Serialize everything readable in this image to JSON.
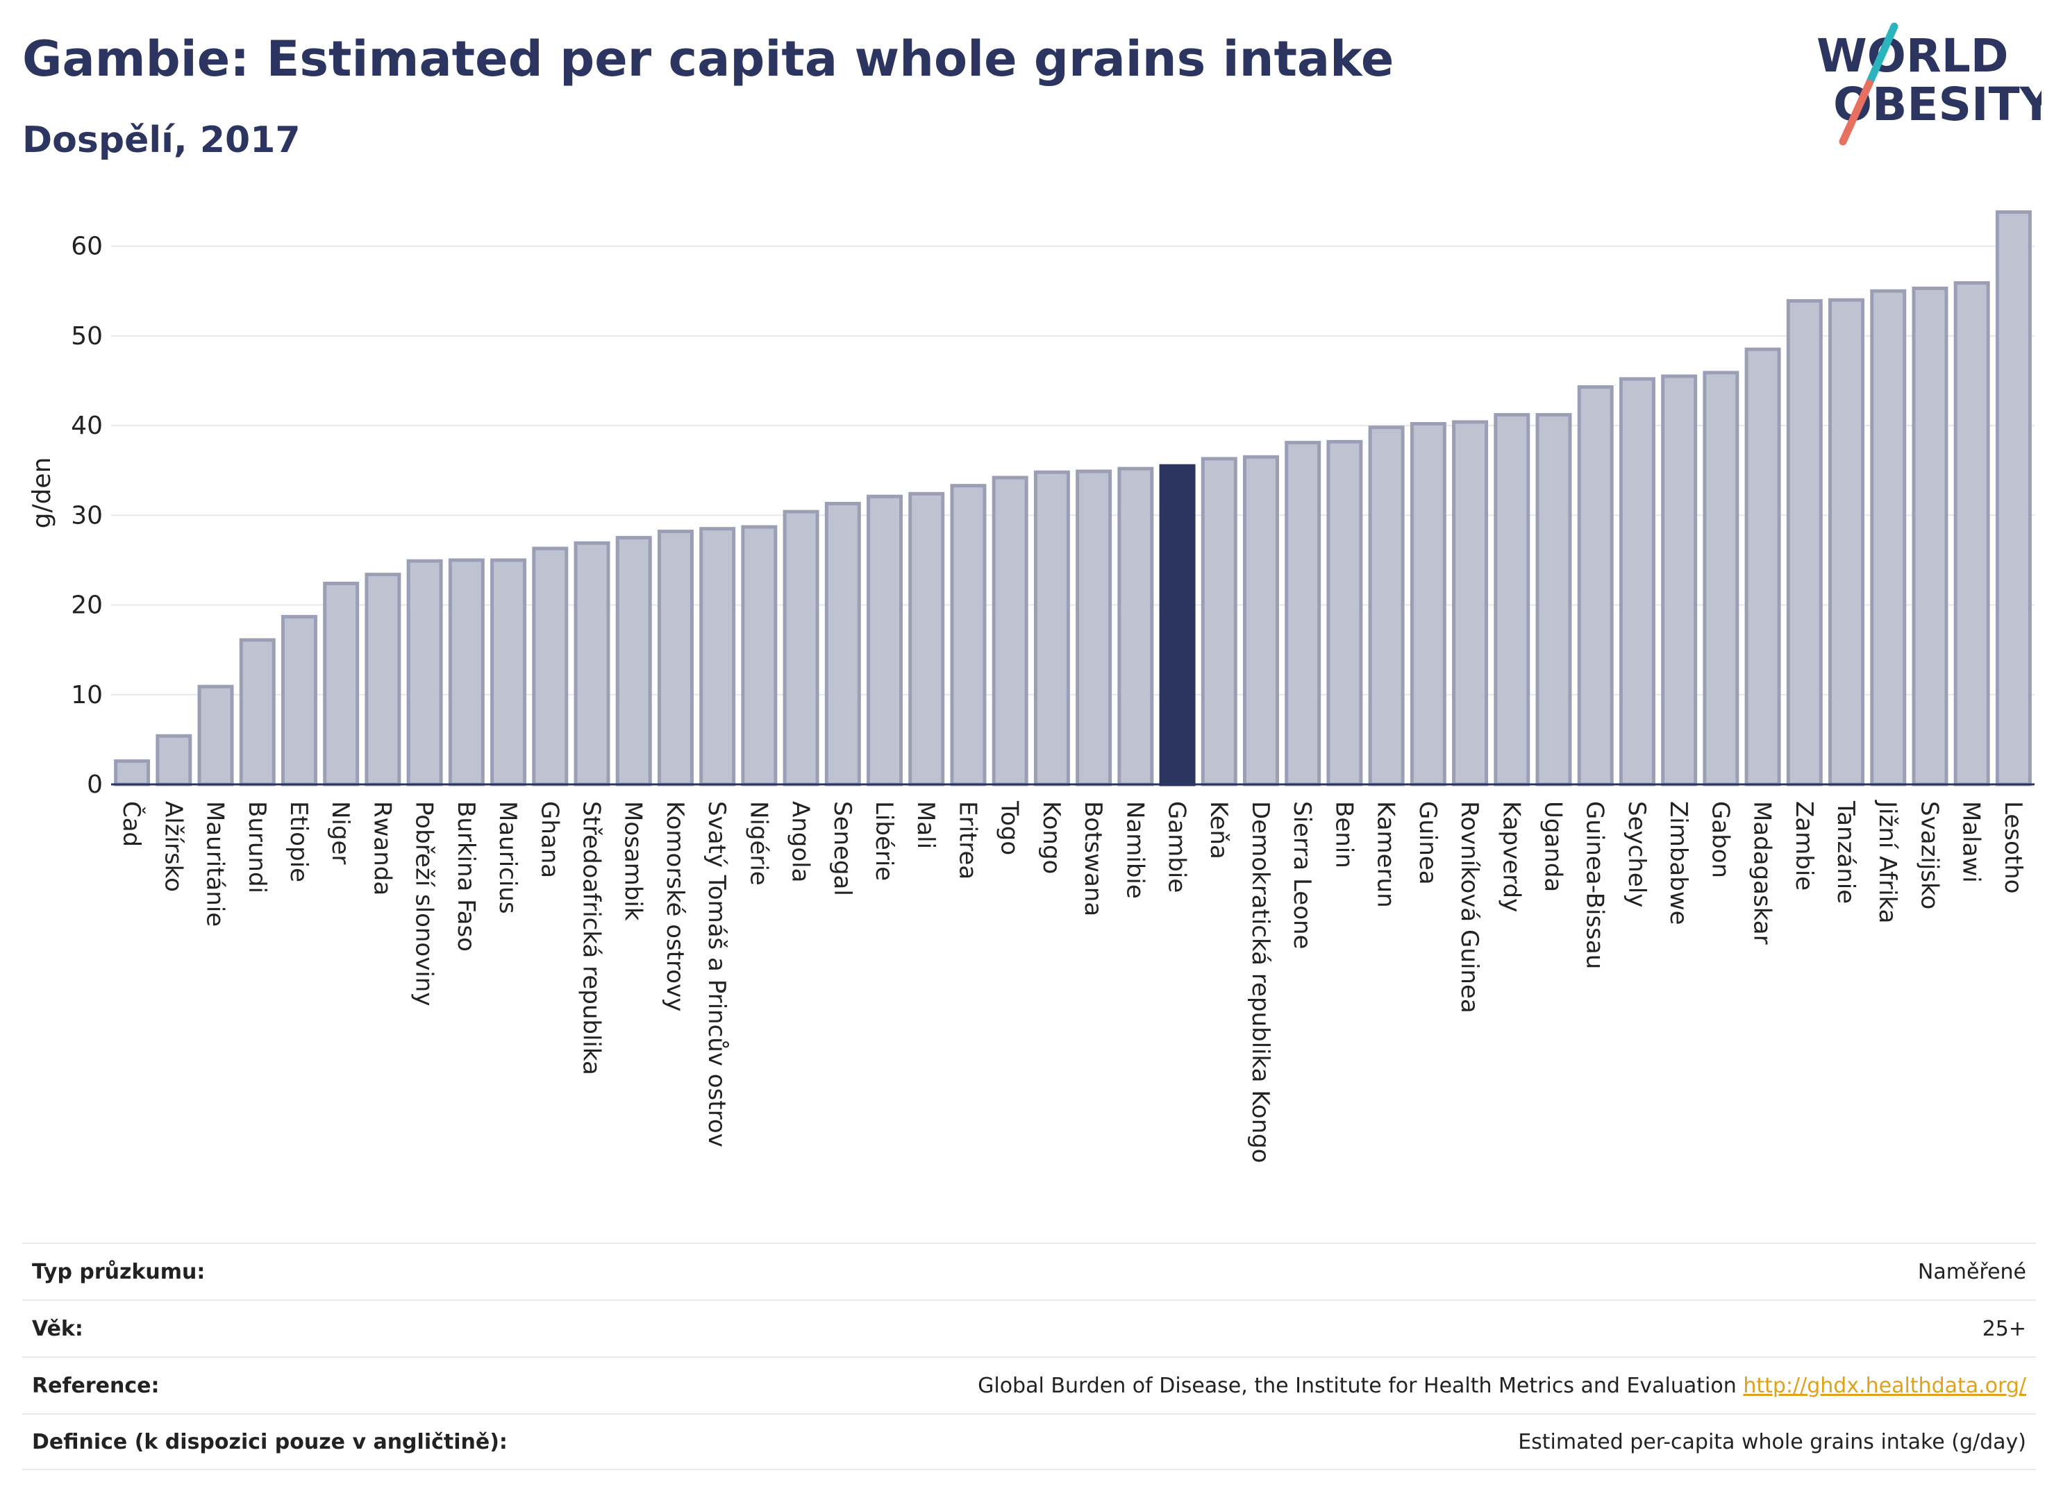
{
  "header": {
    "title": "Gambie: Estimated per capita whole grains intake",
    "subtitle": "Dospělí, 2017"
  },
  "logo": {
    "line1": "WORLD",
    "line2": "OBESITY",
    "colors": {
      "text": "#2b3560",
      "slash_top": "#2bb3c0",
      "slash_bottom": "#e8705f"
    }
  },
  "chart_data": {
    "type": "bar",
    "title": "Gambie: Estimated per capita whole grains intake",
    "subtitle": "Dospělí, 2017",
    "ylabel": "g/den",
    "xlabel": "",
    "ylim": [
      0,
      65
    ],
    "yticks": [
      0,
      10,
      20,
      30,
      40,
      50,
      60
    ],
    "grid": true,
    "highlight": "Gambie",
    "colors": {
      "bar": "#bfc3d1",
      "bar_border": "#9a9fb6",
      "highlight": "#2b3560"
    },
    "categories": [
      "Čad",
      "Alžírsko",
      "Mauritánie",
      "Burundi",
      "Etiopie",
      "Niger",
      "Rwanda",
      "Pobřeží slonoviny",
      "Burkina Faso",
      "Mauricius",
      "Ghana",
      "Středoafrická republika",
      "Mosambik",
      "Komorské ostrovy",
      "Svatý Tomáš a Princův ostrov",
      "Nigérie",
      "Angola",
      "Senegal",
      "Libérie",
      "Mali",
      "Eritrea",
      "Togo",
      "Kongo",
      "Botswana",
      "Namibie",
      "Gambie",
      "Keňa",
      "Demokratická republika Kongo",
      "Sierra Leone",
      "Benin",
      "Kamerun",
      "Guinea",
      "Rovníková Guinea",
      "Kapverdy",
      "Uganda",
      "Guinea-Bissau",
      "Seychely",
      "Zimbabwe",
      "Gabon",
      "Madagaskar",
      "Zambie",
      "Tanzánie",
      "Jižní Afrika",
      "Svazijsko",
      "Malawi",
      "Lesotho"
    ],
    "values": [
      2.6,
      5.4,
      10.9,
      16.1,
      18.7,
      22.4,
      23.4,
      24.9,
      25.0,
      25.0,
      26.3,
      26.9,
      27.5,
      28.2,
      28.5,
      28.7,
      30.4,
      31.3,
      32.1,
      32.4,
      33.3,
      34.2,
      34.8,
      34.9,
      35.2,
      35.5,
      36.3,
      36.5,
      38.1,
      38.2,
      39.8,
      40.2,
      40.4,
      41.2,
      41.2,
      44.3,
      45.2,
      45.5,
      45.9,
      48.5,
      53.9,
      54.0,
      55.0,
      55.3,
      55.9,
      63.8
    ]
  },
  "info": {
    "rows": [
      {
        "label": "Typ průzkumu:",
        "value": "Naměřené"
      },
      {
        "label": "Věk:",
        "value": "25+"
      },
      {
        "label": "Reference:",
        "value": "Global Burden of Disease, the Institute for Health Metrics and Evaluation",
        "link": "http://ghdx.healthdata.org/"
      },
      {
        "label": "Definice (k dispozici pouze v angličtině):",
        "value": "Estimated per-capita whole grains intake (g/day)"
      }
    ]
  }
}
